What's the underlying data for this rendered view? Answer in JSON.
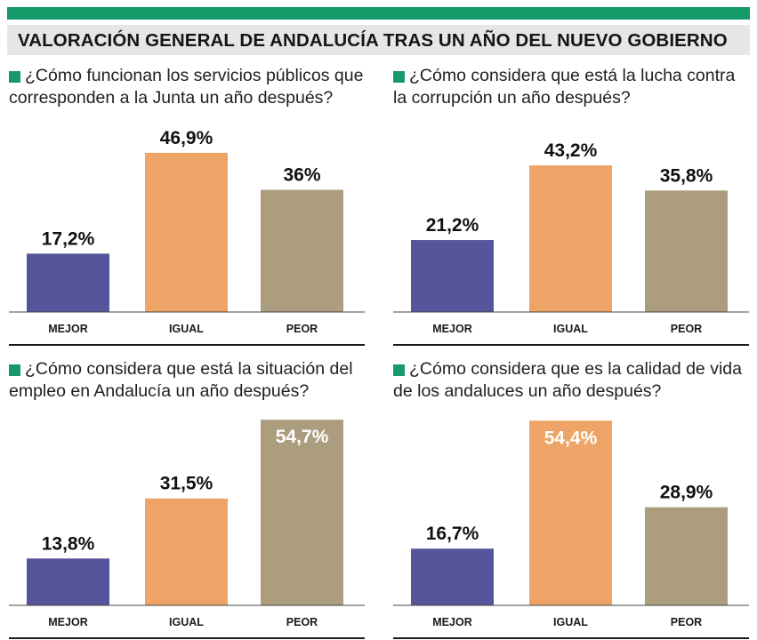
{
  "title": "VALORACIÓN GENERAL DE ANDALUCÍA TRAS UN AÑO DEL NUEVO GOBIERNO",
  "colors": {
    "top_bar": "#139a68",
    "marker": "#169a6a",
    "mejor": "#56549a",
    "igual": "#eda466",
    "peor": "#ac9d7f"
  },
  "chart_data": [
    {
      "type": "bar",
      "question": "¿Cómo funcionan los servicios públicos que corresponden a la Junta un año después?",
      "categories": [
        "MEJOR",
        "IGUAL",
        "PEOR"
      ],
      "values": [
        17.2,
        46.9,
        36
      ],
      "value_labels": [
        "17,2%",
        "46,9%",
        "36%"
      ],
      "ylim": [
        0,
        55
      ]
    },
    {
      "type": "bar",
      "question": "¿Cómo considera que está la lucha contra la corrupción un año después?",
      "categories": [
        "MEJOR",
        "IGUAL",
        "PEOR"
      ],
      "values": [
        21.2,
        43.2,
        35.8
      ],
      "value_labels": [
        "21,2%",
        "43,2%",
        "35,8%"
      ],
      "ylim": [
        0,
        55
      ]
    },
    {
      "type": "bar",
      "question": "¿Cómo considera que está la situación del empleo en Andalucía un año después?",
      "categories": [
        "MEJOR",
        "IGUAL",
        "PEOR"
      ],
      "values": [
        13.8,
        31.5,
        54.7
      ],
      "value_labels": [
        "13,8%",
        "31,5%",
        "54,7%"
      ],
      "ylim": [
        0,
        55
      ]
    },
    {
      "type": "bar",
      "question": "¿Cómo considera que es la calidad de vida de los andaluces un año después?",
      "categories": [
        "MEJOR",
        "IGUAL",
        "PEOR"
      ],
      "values": [
        16.7,
        54.4,
        28.9
      ],
      "value_labels": [
        "16,7%",
        "54,4%",
        "28,9%"
      ],
      "ylim": [
        0,
        55
      ]
    }
  ]
}
